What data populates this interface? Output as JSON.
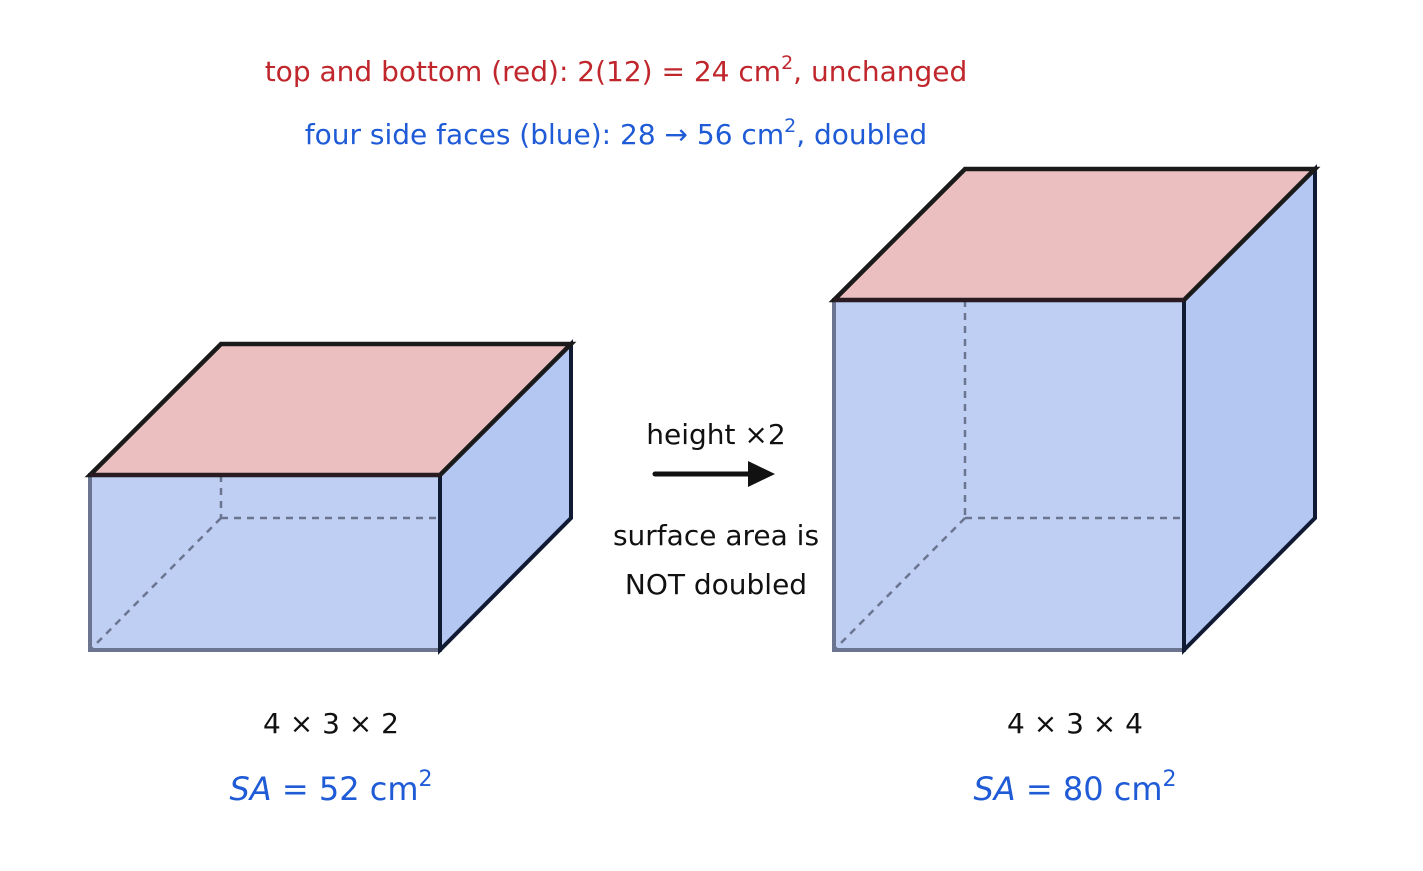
{
  "header": {
    "line1": {
      "prefix": "top and bottom (red): 2(12) = 24 cm",
      "sup": "2",
      "suffix": ", unchanged"
    },
    "line2": {
      "prefix": "four side faces (blue): 28 → 56 cm",
      "sup": "2",
      "suffix": ", doubled"
    }
  },
  "middle": {
    "label": "height ×2",
    "note_line1": "surface area is",
    "note_line2": "NOT doubled"
  },
  "left_box": {
    "dims": "4 × 3 × 2",
    "sa_var": "SA",
    "sa_rest": " = 52 cm",
    "sa_sup": "2"
  },
  "right_box": {
    "dims": "4 × 3 × 4",
    "sa_var": "SA",
    "sa_rest": " = 80 cm",
    "sa_sup": "2"
  },
  "colors": {
    "red_text": "#c0272d",
    "blue_text": "#1f5bd6",
    "top_face": "#ebbfc0",
    "front_face": "#bfcff3",
    "side_face": "#b3c7f2",
    "outline": "#1a1a1a",
    "hidden_edge": "#6b7590"
  }
}
